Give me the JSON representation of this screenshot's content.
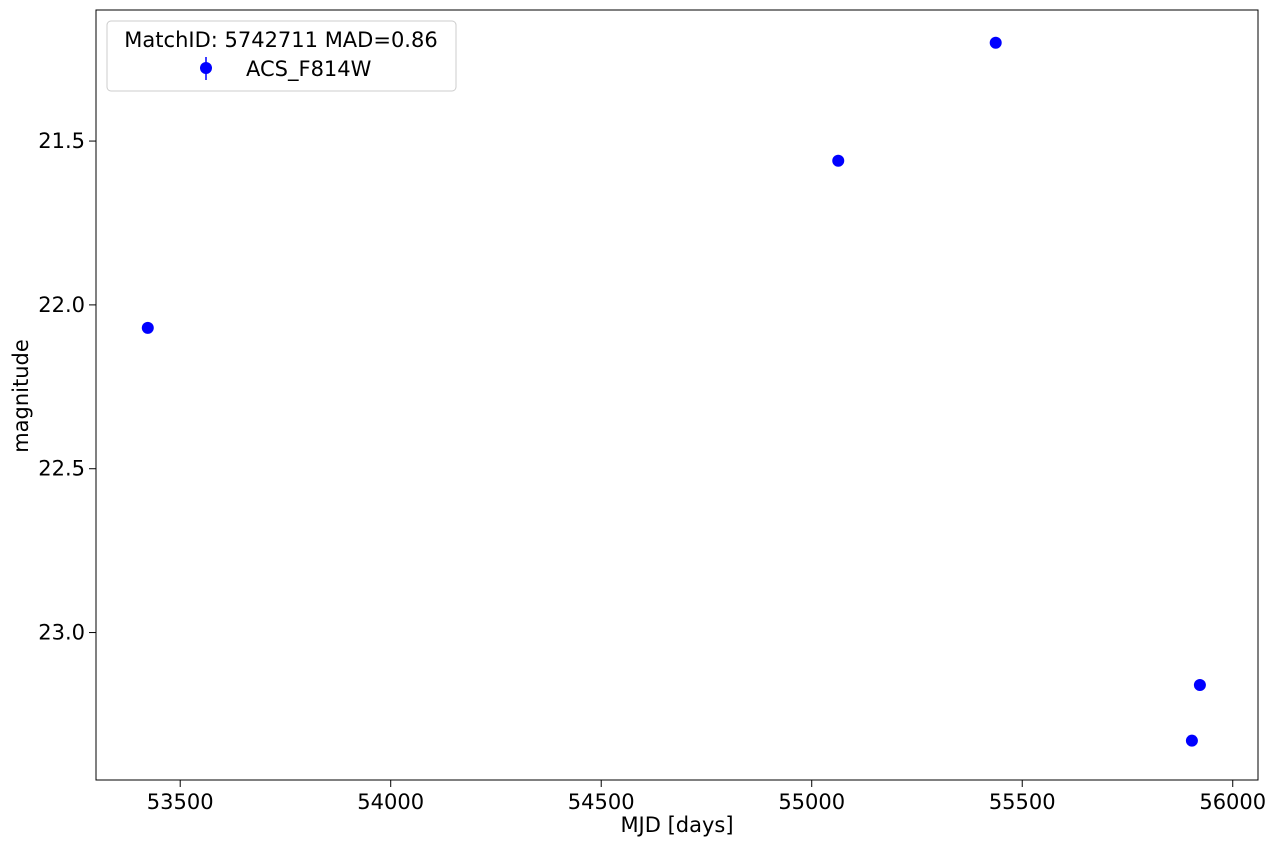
{
  "chart_data": {
    "type": "scatter",
    "xlabel": "MJD [days]",
    "ylabel": "magnitude",
    "xlim": [
      53300,
      56060
    ],
    "ylim": [
      23.45,
      21.1
    ],
    "y_inverted": true,
    "grid": false,
    "x_ticks": [
      {
        "value": 53500,
        "label": "53500"
      },
      {
        "value": 54000,
        "label": "54000"
      },
      {
        "value": 54500,
        "label": "54500"
      },
      {
        "value": 55000,
        "label": "55000"
      },
      {
        "value": 55500,
        "label": "55500"
      },
      {
        "value": 56000,
        "label": "56000"
      }
    ],
    "y_ticks": [
      {
        "value": 21.5,
        "label": "21.5"
      },
      {
        "value": 22.0,
        "label": "22.0"
      },
      {
        "value": 22.5,
        "label": "22.5"
      },
      {
        "value": 23.0,
        "label": "23.0"
      }
    ],
    "legend": {
      "placement": "top-left",
      "title": "MatchID: 5742711 MAD=0.86",
      "entries": [
        {
          "label": "ACS_F814W",
          "marker": "circle-errorbar",
          "color": "#0000ff"
        }
      ]
    },
    "series": [
      {
        "name": "ACS_F814W",
        "color": "#0000ff",
        "marker": "circle",
        "points": [
          {
            "x": 53423,
            "y": 22.07
          },
          {
            "x": 55063,
            "y": 21.56
          },
          {
            "x": 55437,
            "y": 21.2
          },
          {
            "x": 55903,
            "y": 23.33
          },
          {
            "x": 55922,
            "y": 23.16
          }
        ]
      }
    ]
  }
}
